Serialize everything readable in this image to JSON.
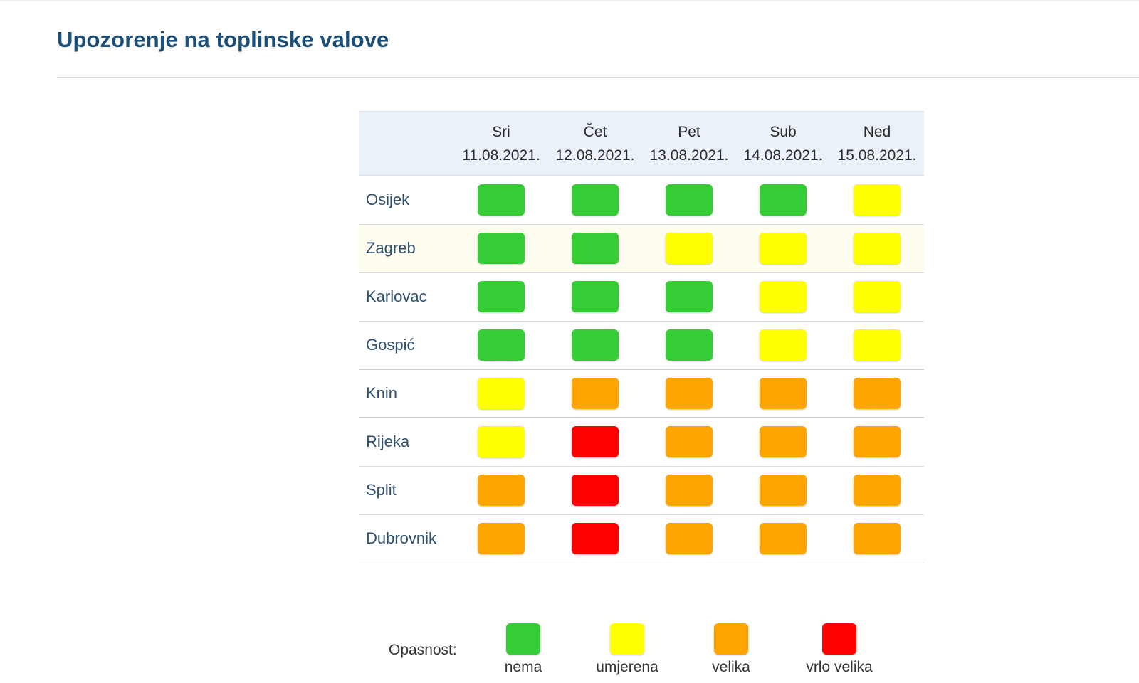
{
  "page": {
    "title": "Upozorenje na toplinske valove"
  },
  "colors": {
    "nema": "#35cc35",
    "umjerena": "#ffff00",
    "velika": "#ffa500",
    "vrlo_velika": "#ff0000"
  },
  "days": [
    {
      "name": "Sri",
      "date": "11.08.2021."
    },
    {
      "name": "Čet",
      "date": "12.08.2021."
    },
    {
      "name": "Pet",
      "date": "13.08.2021."
    },
    {
      "name": "Sub",
      "date": "14.08.2021."
    },
    {
      "name": "Ned",
      "date": "15.08.2021."
    }
  ],
  "rows": [
    {
      "city": "Osijek",
      "levels": [
        "nema",
        "nema",
        "nema",
        "nema",
        "umjerena"
      ]
    },
    {
      "city": "Zagreb",
      "levels": [
        "nema",
        "nema",
        "umjerena",
        "umjerena",
        "umjerena"
      ]
    },
    {
      "city": "Karlovac",
      "levels": [
        "nema",
        "nema",
        "nema",
        "umjerena",
        "umjerena"
      ]
    },
    {
      "city": "Gospić",
      "levels": [
        "nema",
        "nema",
        "nema",
        "umjerena",
        "umjerena"
      ]
    },
    {
      "city": "Knin",
      "levels": [
        "umjerena",
        "velika",
        "velika",
        "velika",
        "velika"
      ]
    },
    {
      "city": "Rijeka",
      "levels": [
        "umjerena",
        "vrlo_velika",
        "velika",
        "velika",
        "velika"
      ]
    },
    {
      "city": "Split",
      "levels": [
        "velika",
        "vrlo_velika",
        "velika",
        "velika",
        "velika"
      ]
    },
    {
      "city": "Dubrovnik",
      "levels": [
        "velika",
        "vrlo_velika",
        "velika",
        "velika",
        "velika"
      ]
    }
  ],
  "legend": {
    "label": "Opasnost:",
    "items": [
      {
        "key": "nema",
        "label": "nema"
      },
      {
        "key": "umjerena",
        "label": "umjerena"
      },
      {
        "key": "velika",
        "label": "velika"
      },
      {
        "key": "vrlo_velika",
        "label": "vrlo velika"
      }
    ]
  }
}
